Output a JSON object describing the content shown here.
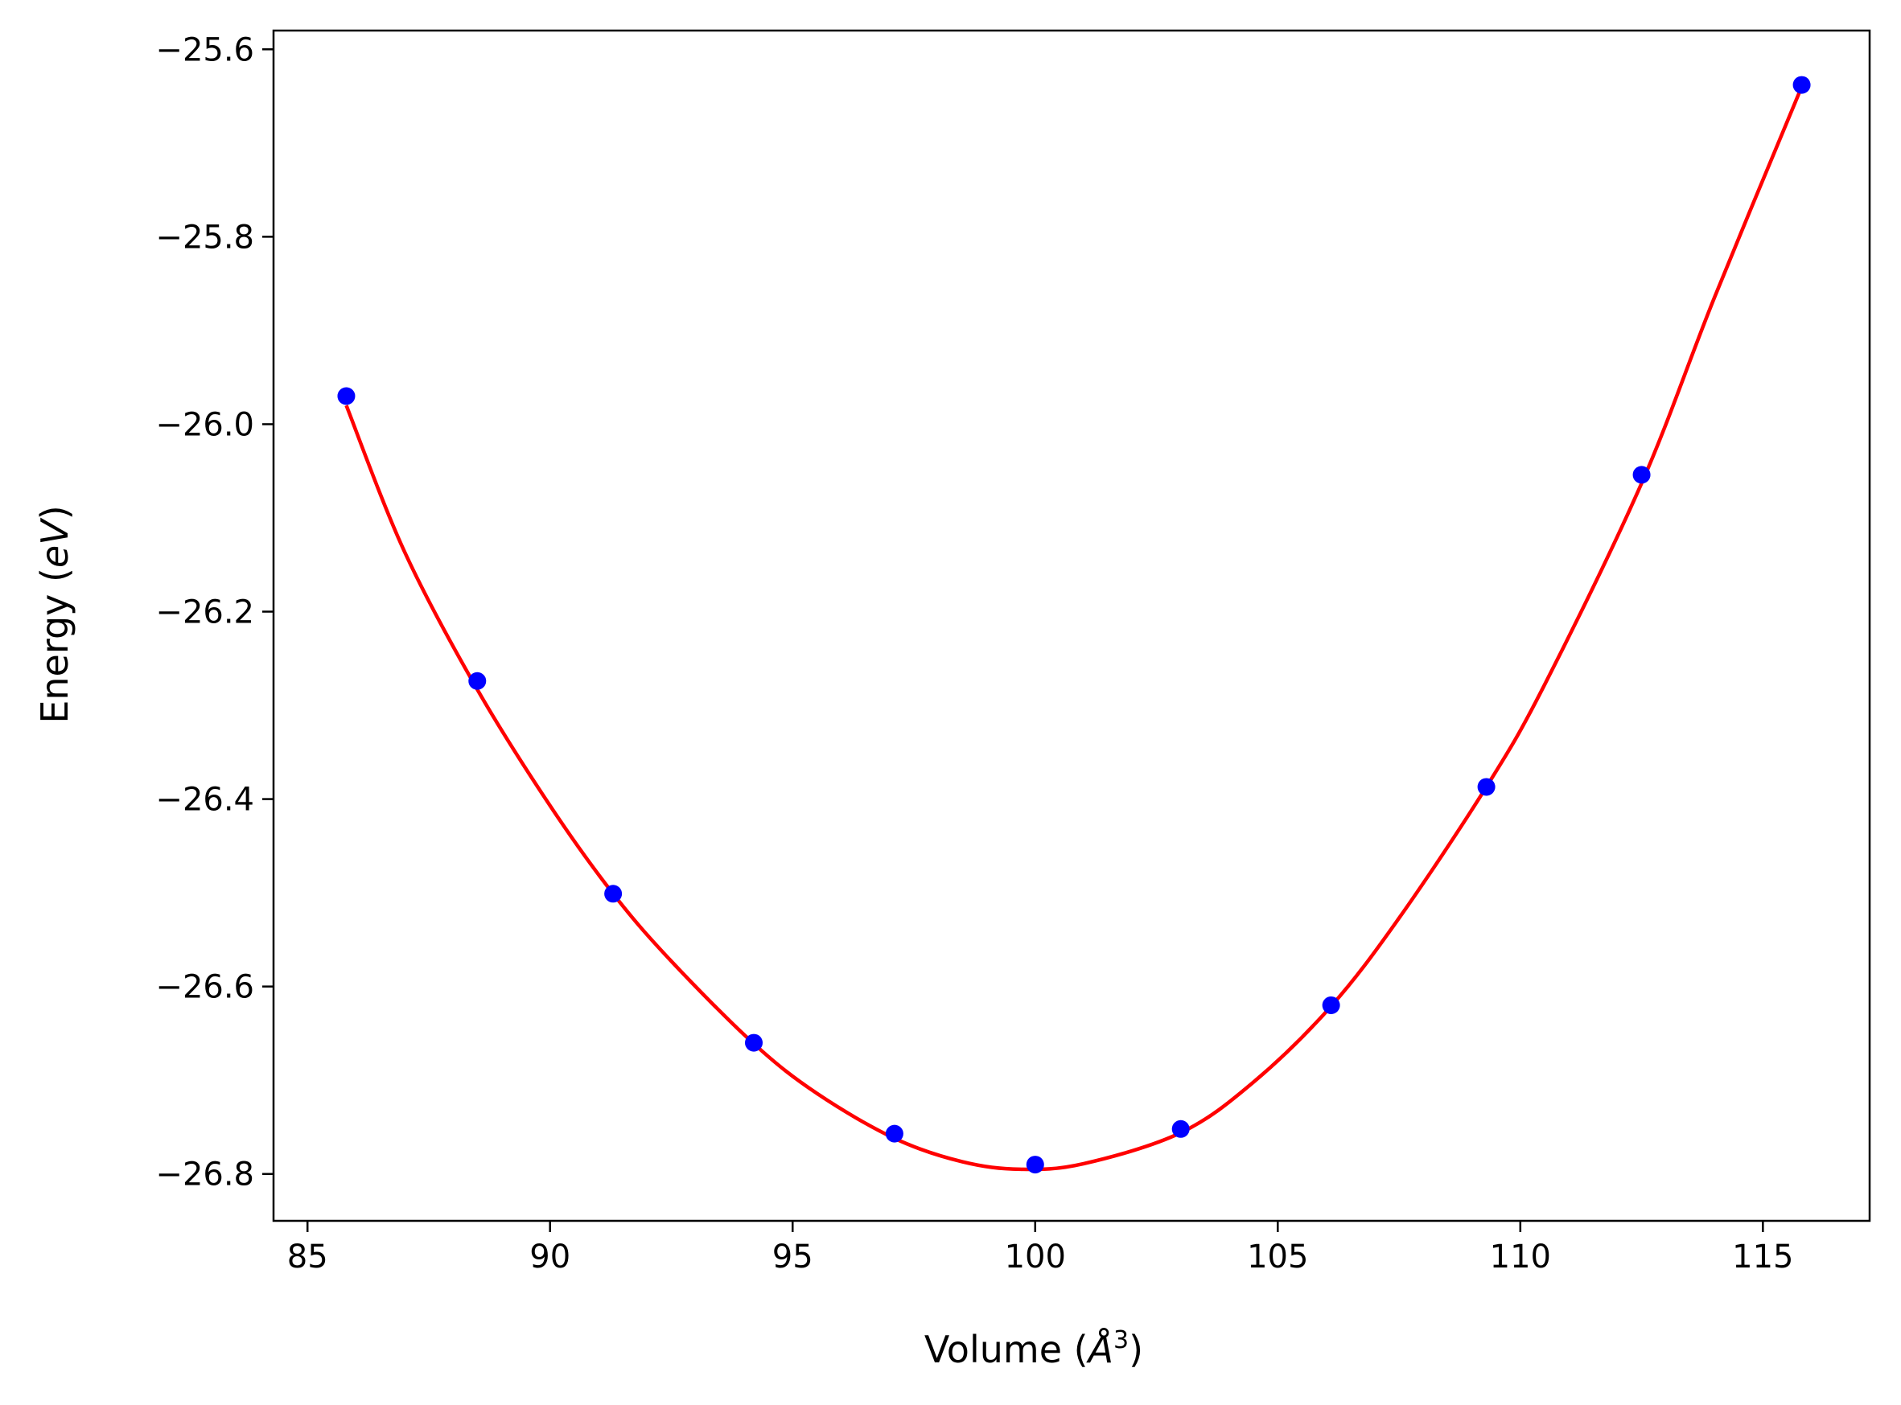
{
  "chart_data": {
    "type": "scatter",
    "title": "",
    "xlabel": {
      "main": "Volume (",
      "sym": "Å",
      "sup": "3",
      "close": ")"
    },
    "ylabel": {
      "main": "Energy (",
      "unit": "eV",
      "close": ")"
    },
    "xlim": [
      84.3,
      117.2
    ],
    "ylim": [
      -26.85,
      -25.58
    ],
    "xticks": [
      85,
      90,
      95,
      100,
      105,
      110,
      115
    ],
    "xtick_labels": [
      "85",
      "90",
      "95",
      "100",
      "105",
      "110",
      "115"
    ],
    "yticks": [
      -25.6,
      -25.8,
      -26.0,
      -26.2,
      -26.4,
      -26.6,
      -26.8
    ],
    "ytick_labels": [
      "−25.6",
      "−25.8",
      "−26.0",
      "−26.2",
      "−26.4",
      "−26.6",
      "−26.8"
    ],
    "grid": false,
    "series": [
      {
        "kind": "points",
        "color": "#0000ff",
        "x": [
          85.8,
          88.5,
          91.3,
          94.2,
          97.1,
          100.0,
          103.0,
          106.1,
          109.3,
          112.5,
          115.8
        ],
        "y": [
          -25.97,
          -26.274,
          -26.501,
          -26.66,
          -26.757,
          -26.79,
          -26.752,
          -26.62,
          -26.387,
          -26.054,
          -25.638
        ]
      },
      {
        "kind": "fit-line",
        "color": "#ff0000",
        "x": [
          85.8,
          87.0,
          88.5,
          90.0,
          91.3,
          92.5,
          94.2,
          95.5,
          97.1,
          98.5,
          99.7,
          101.0,
          103.0,
          104.5,
          106.1,
          107.5,
          109.3,
          110.5,
          112.5,
          114.0,
          115.8
        ],
        "y": [
          -25.98,
          -26.136,
          -26.283,
          -26.407,
          -26.501,
          -26.573,
          -26.661,
          -26.714,
          -26.762,
          -26.787,
          -26.795,
          -26.789,
          -26.756,
          -26.702,
          -26.621,
          -26.527,
          -26.387,
          -26.278,
          -26.063,
          -25.865,
          -25.64
        ]
      }
    ]
  }
}
